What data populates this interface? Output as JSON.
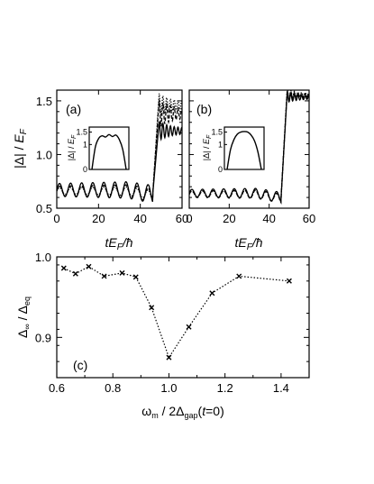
{
  "chart_data": [
    {
      "id": "a",
      "type": "line",
      "panel_label": "(a)",
      "xlabel": "tE_F/ħ",
      "ylabel": "|Δ| / E_F",
      "xlim": [
        0,
        60
      ],
      "ylim": [
        0.5,
        1.6
      ],
      "xticks": [
        0,
        20,
        40,
        60
      ],
      "yticks": [
        0.5,
        1.0,
        1.5
      ],
      "xtick_labels": [
        "0",
        "20",
        "40",
        "60"
      ],
      "ytick_labels": [
        "0.5",
        "1.0",
        "1.5"
      ],
      "series": [
        {
          "style": "solid",
          "baseline": 0.67,
          "amplitude": 0.06,
          "period": 5.3,
          "jump_at": 48,
          "final": 1.22,
          "final_amplitude": 0.04
        },
        {
          "style": "dashed",
          "baseline": 0.67,
          "amplitude": 0.045,
          "period": 5.3,
          "jump_at": 48,
          "final": 1.38,
          "final_amplitude": 0.06
        },
        {
          "style": "dotted",
          "baseline": 0.67,
          "amplitude": 0.03,
          "period": 5.3,
          "jump_at": 48,
          "final": 1.46,
          "final_amplitude": 0.05
        }
      ],
      "inset": {
        "ylabel": "|Δ| / E_F",
        "yticks": [
          0,
          1,
          1.5
        ],
        "ytick_labels": [
          "0",
          "1",
          "1.5"
        ],
        "ylim": [
          0,
          1.7
        ],
        "x": [
          0,
          0.1,
          0.2,
          0.3,
          0.4,
          0.5,
          0.6,
          0.7,
          0.8,
          0.9,
          1.0
        ],
        "y": [
          0,
          0.9,
          1.25,
          1.35,
          1.3,
          1.4,
          1.32,
          1.38,
          1.2,
          0.8,
          0
        ]
      }
    },
    {
      "id": "b",
      "type": "line",
      "panel_label": "(b)",
      "xlabel": "tE_F/ħ",
      "xlim": [
        0,
        60
      ],
      "ylim": [
        0.5,
        1.6
      ],
      "xticks": [
        0,
        20,
        40,
        60
      ],
      "xtick_labels": [
        "0",
        "20",
        "40",
        "60"
      ],
      "series": [
        {
          "style": "solid",
          "baseline": 0.64,
          "amplitude": 0.035,
          "period": 5.3,
          "jump_at": 48,
          "final": 1.53,
          "final_amplitude": 0.02
        },
        {
          "style": "dashed",
          "baseline": 0.64,
          "amplitude": 0.03,
          "period": 5.3,
          "jump_at": 48,
          "final": 1.55,
          "final_amplitude": 0.02
        },
        {
          "style": "dotted",
          "baseline": 0.64,
          "amplitude": 0.03,
          "period": 5.3,
          "jump_at": 48,
          "final": 1.56,
          "final_amplitude": 0.02
        }
      ],
      "inset": {
        "ylabel": "|Δ| / E_F",
        "yticks": [
          0,
          1,
          1.5
        ],
        "ytick_labels": [
          "0",
          "1",
          "1.5"
        ],
        "ylim": [
          0,
          1.7
        ],
        "x": [
          0,
          0.1,
          0.2,
          0.3,
          0.4,
          0.5,
          0.6,
          0.7,
          0.8,
          0.9,
          1.0
        ],
        "y": [
          0,
          0.8,
          1.2,
          1.42,
          1.5,
          1.52,
          1.5,
          1.38,
          1.15,
          0.7,
          0
        ]
      }
    },
    {
      "id": "c",
      "type": "scatter",
      "panel_label": "(c)",
      "xlabel": "ω_m / 2Δ_gap(t=0)",
      "ylabel": "Δ_∞ / Δ_eq",
      "xlim": [
        0.6,
        1.5
      ],
      "ylim": [
        0.85,
        1.0
      ],
      "xticks": [
        0.6,
        0.8,
        1.0,
        1.2,
        1.4
      ],
      "xtick_labels": [
        "0.6",
        "0.8",
        "1.0",
        "1.2",
        "1.4"
      ],
      "yticks": [
        0.9,
        1.0
      ],
      "ytick_labels": [
        "0.9",
        "1.0"
      ],
      "x": [
        0.625,
        0.667,
        0.714,
        0.769,
        0.833,
        0.882,
        0.938,
        1.0,
        1.071,
        1.154,
        1.25,
        1.429
      ],
      "y": [
        0.986,
        0.979,
        0.988,
        0.976,
        0.98,
        0.975,
        0.937,
        0.875,
        0.913,
        0.955,
        0.976,
        0.97
      ]
    }
  ]
}
